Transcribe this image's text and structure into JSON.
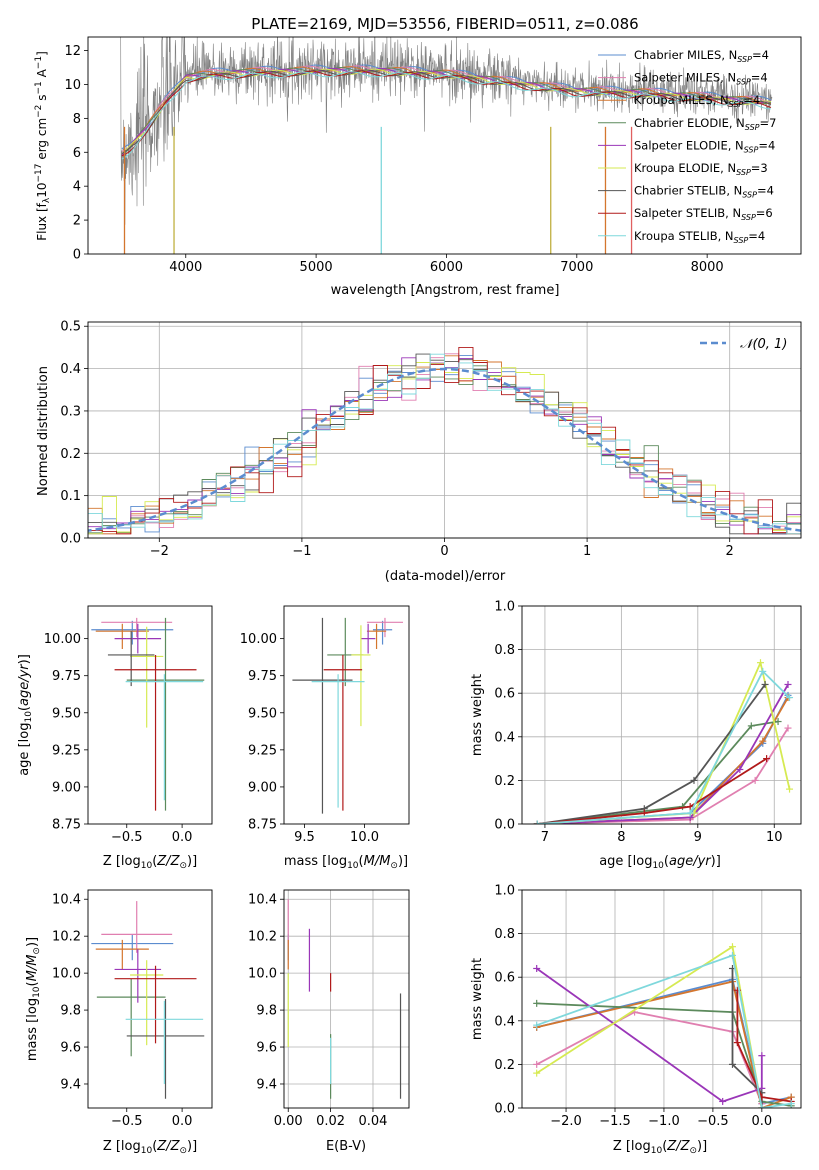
{
  "title": "PLATE=2169, MJD=53556, FIBERID=0511, z=0.086",
  "series": [
    {
      "name": "Chabrier MILES, N_SSP=4",
      "color": "#5b8ccf"
    },
    {
      "name": "Salpeter MILES, N_SSP=4",
      "color": "#e07fb0"
    },
    {
      "name": "Kroupa MILES, N_SSP=4",
      "color": "#d4762e"
    },
    {
      "name": "Chabrier ELODIE, N_SSP=7",
      "color": "#5c8a5c"
    },
    {
      "name": "Salpeter ELODIE, N_SSP=4",
      "color": "#9a36b8"
    },
    {
      "name": "Kroupa ELODIE, N_SSP=3",
      "color": "#d6ea52"
    },
    {
      "name": "Chabrier STELIB, N_SSP=4",
      "color": "#555555"
    },
    {
      "name": "Salpeter STELIB, N_SSP=6",
      "color": "#b11a1a"
    },
    {
      "name": "Kroupa STELIB, N_SSP=4",
      "color": "#7fd8dc"
    }
  ],
  "chart_data": [
    {
      "id": "spectrum",
      "type": "line",
      "title": "PLATE=2169, MJD=53556, FIBERID=0511, z=0.086",
      "xlabel": "wavelength [Angstrom, rest frame]",
      "ylabel": "Flux [f_λ 10^-17 erg cm^-2 s^-1 A^-1]",
      "xlim": [
        3250,
        8720
      ],
      "ylim": [
        0,
        12.8
      ],
      "xticks": [
        4000,
        5000,
        6000,
        7000,
        8000
      ],
      "yticks": [
        0,
        2,
        4,
        6,
        8,
        10,
        12
      ],
      "data_profile": {
        "x": [
          3500,
          3560,
          3700,
          3850,
          4000,
          4200,
          4500,
          5000,
          5500,
          6000,
          6500,
          7000,
          7500,
          8000,
          8500
        ],
        "model_flux": [
          6.0,
          6.4,
          7.6,
          9.2,
          10.6,
          10.8,
          10.9,
          11.0,
          11.0,
          10.8,
          10.3,
          9.8,
          9.7,
          9.4,
          9.1
        ]
      },
      "grid": false,
      "legend": "right"
    },
    {
      "id": "residuals",
      "type": "line",
      "xlabel": "(data-model)/error",
      "ylabel": "Normed distribution",
      "xlim": [
        -2.5,
        2.5
      ],
      "ylim": [
        0,
        0.51
      ],
      "xticks": [
        -2,
        -1,
        0,
        1,
        2
      ],
      "yticks": [
        0.0,
        0.1,
        0.2,
        0.3,
        0.4,
        0.5
      ],
      "reference_curve": "N(0,1)",
      "grid": true,
      "legend": "top-right"
    },
    {
      "id": "age_vs_Z",
      "type": "scatter",
      "xlabel": "Z [log10(Z/Z⊙)]",
      "ylabel": "age [log10(age/yr)]",
      "xlim": [
        -0.85,
        0.27
      ],
      "ylim": [
        8.75,
        10.22
      ],
      "xticks": [
        -0.5,
        0.0
      ],
      "yticks": [
        8.75,
        9.0,
        9.25,
        9.5,
        9.75,
        10.0
      ],
      "points": [
        {
          "x": -0.45,
          "y": 10.06,
          "xerr": 0.37,
          "ylo": 0.1,
          "yhi": 0.06
        },
        {
          "x": -0.41,
          "y": 10.11,
          "xerr": 0.32,
          "ylo": 0.1,
          "yhi": 0.03
        },
        {
          "x": -0.54,
          "y": 10.05,
          "xerr": 0.24,
          "ylo": 0.12,
          "yhi": 0.05
        },
        {
          "x": -0.15,
          "y": 9.72,
          "xerr": 0.35,
          "ylo": 0.88,
          "yhi": 0.42
        },
        {
          "x": -0.4,
          "y": 10.0,
          "xerr": 0.21,
          "ylo": 0.1,
          "yhi": 0.1
        },
        {
          "x": -0.32,
          "y": 9.88,
          "xerr": 0.15,
          "ylo": 0.48,
          "yhi": 0.2
        },
        {
          "x": -0.46,
          "y": 9.89,
          "xerr": 0.21,
          "ylo": 0.21,
          "yhi": 0.16
        },
        {
          "x": -0.24,
          "y": 9.79,
          "xerr": 0.37,
          "ylo": 0.95,
          "yhi": 0.1
        },
        {
          "x": -0.16,
          "y": 9.71,
          "xerr": 0.35,
          "ylo": 0.8,
          "yhi": 0.05
        }
      ]
    },
    {
      "id": "age_vs_mass",
      "type": "scatter",
      "xlabel": "mass [log10(M/M⊙)]",
      "ylabel": "",
      "xlim": [
        9.33,
        10.37
      ],
      "ylim": [
        8.75,
        10.22
      ],
      "xticks": [
        9.5,
        10.0
      ],
      "yticks": [
        8.75,
        9.0,
        9.25,
        9.5,
        9.75,
        10.0
      ],
      "points": [
        {
          "x": 10.15,
          "y": 10.06,
          "xerr": 0.08,
          "ylo": 0.1,
          "yhi": 0.06
        },
        {
          "x": 10.17,
          "y": 10.11,
          "xerr": 0.15,
          "ylo": 0.1,
          "yhi": 0.03
        },
        {
          "x": 10.1,
          "y": 10.05,
          "xerr": 0.08,
          "ylo": 0.12,
          "yhi": 0.05
        },
        {
          "x": 9.84,
          "y": 9.89,
          "xerr": 0.15,
          "ylo": 0.21,
          "yhi": 0.25
        },
        {
          "x": 10.03,
          "y": 10.0,
          "xerr": 0.06,
          "ylo": 0.1,
          "yhi": 0.1
        },
        {
          "x": 9.97,
          "y": 9.89,
          "xerr": 0.08,
          "ylo": 0.48,
          "yhi": 0.2
        },
        {
          "x": 9.65,
          "y": 9.72,
          "xerr": 0.25,
          "ylo": 0.9,
          "yhi": 0.42
        },
        {
          "x": 9.82,
          "y": 9.79,
          "xerr": 0.16,
          "ylo": 0.95,
          "yhi": 0.1
        },
        {
          "x": 9.78,
          "y": 9.71,
          "xerr": 0.22,
          "ylo": 0.85,
          "yhi": 0.05
        }
      ]
    },
    {
      "id": "mass_weight_vs_age",
      "type": "line",
      "xlabel": "age [log10(age/yr)]",
      "ylabel": "mass weight",
      "xlim": [
        6.7,
        10.35
      ],
      "ylim": [
        0,
        1
      ],
      "xticks": [
        7,
        8,
        9,
        10
      ],
      "yticks": [
        0.0,
        0.2,
        0.4,
        0.6,
        0.8,
        1.0
      ],
      "grid": true,
      "lines": [
        {
          "x": [
            6.9,
            8.9,
            9.85,
            10.18
          ],
          "y": [
            0.0,
            0.05,
            0.37,
            0.59
          ]
        },
        {
          "x": [
            6.9,
            8.9,
            9.75,
            10.18
          ],
          "y": [
            0.0,
            0.02,
            0.2,
            0.44
          ]
        },
        {
          "x": [
            6.9,
            8.9,
            9.85,
            10.18
          ],
          "y": [
            0.0,
            0.03,
            0.38,
            0.58
          ]
        },
        {
          "x": [
            6.9,
            8.8,
            9.7,
            10.05
          ],
          "y": [
            0.0,
            0.08,
            0.45,
            0.47
          ]
        },
        {
          "x": [
            6.9,
            8.9,
            9.55,
            10.18
          ],
          "y": [
            0.0,
            0.03,
            0.25,
            0.64
          ]
        },
        {
          "x": [
            6.9,
            8.95,
            9.82,
            10.2
          ],
          "y": [
            0.0,
            0.05,
            0.74,
            0.16
          ]
        },
        {
          "x": [
            6.9,
            8.3,
            8.95,
            9.88
          ],
          "y": [
            0.0,
            0.07,
            0.2,
            0.64
          ]
        },
        {
          "x": [
            6.9,
            8.3,
            8.9,
            9.9
          ],
          "y": [
            0.0,
            0.05,
            0.08,
            0.3
          ]
        },
        {
          "x": [
            6.9,
            8.9,
            9.85,
            10.2
          ],
          "y": [
            0.0,
            0.05,
            0.7,
            0.58
          ]
        }
      ]
    },
    {
      "id": "mass_vs_Z",
      "type": "scatter",
      "xlabel": "Z [log10(Z/Z⊙)]",
      "ylabel": "mass [log10(M/M⊙)]",
      "xlim": [
        -0.85,
        0.27
      ],
      "ylim": [
        9.27,
        10.45
      ],
      "xticks": [
        -0.5,
        0.0
      ],
      "yticks": [
        9.4,
        9.6,
        9.8,
        10.0,
        10.2,
        10.4
      ],
      "points": [
        {
          "x": -0.45,
          "y": 10.16,
          "xerr": 0.37,
          "ylo": 0.09,
          "yhi": 0.05
        },
        {
          "x": -0.41,
          "y": 10.21,
          "xerr": 0.32,
          "ylo": 0.1,
          "yhi": 0.18
        },
        {
          "x": -0.54,
          "y": 10.13,
          "xerr": 0.24,
          "ylo": 0.11,
          "yhi": 0.05
        },
        {
          "x": -0.46,
          "y": 9.87,
          "xerr": 0.31,
          "ylo": 0.32,
          "yhi": 0.1
        },
        {
          "x": -0.4,
          "y": 10.02,
          "xerr": 0.21,
          "ylo": 0.18,
          "yhi": 0.11
        },
        {
          "x": -0.32,
          "y": 9.99,
          "xerr": 0.15,
          "ylo": 0.38,
          "yhi": 0.08
        },
        {
          "x": -0.15,
          "y": 9.66,
          "xerr": 0.35,
          "ylo": 0.34,
          "yhi": 0.2
        },
        {
          "x": -0.24,
          "y": 9.97,
          "xerr": 0.37,
          "ylo": 0.35,
          "yhi": 0.07
        },
        {
          "x": -0.16,
          "y": 9.75,
          "xerr": 0.35,
          "ylo": 0.35,
          "yhi": 0.1
        }
      ]
    },
    {
      "id": "mass_vs_ebv",
      "type": "scatter",
      "xlabel": "E(B-V)",
      "ylabel": "",
      "xlim": [
        -0.002,
        0.057
      ],
      "ylim": [
        9.27,
        10.45
      ],
      "xticks": [
        0.0,
        0.02,
        0.04
      ],
      "yticks": [
        9.4,
        9.6,
        9.8,
        10.0,
        10.2,
        10.4
      ],
      "points": [
        {
          "x": 0.0,
          "y": 10.16,
          "ylo": 0.09,
          "yhi": 0.05
        },
        {
          "x": 0.0,
          "y": 10.3,
          "ylo": 0.15,
          "yhi": 0.1
        },
        {
          "x": 0.0,
          "y": 10.13,
          "ylo": 0.11,
          "yhi": 0.05
        },
        {
          "x": 0.02,
          "y": 9.57,
          "ylo": 0.25,
          "yhi": 0.1
        },
        {
          "x": 0.01,
          "y": 10.07,
          "ylo": 0.17,
          "yhi": 0.17
        },
        {
          "x": 0.0,
          "y": 9.8,
          "ylo": 0.2,
          "yhi": 0.2
        },
        {
          "x": 0.053,
          "y": 9.6,
          "ylo": 0.28,
          "yhi": 0.29
        },
        {
          "x": 0.02,
          "y": 9.95,
          "ylo": 0.05,
          "yhi": 0.05
        },
        {
          "x": 0.02,
          "y": 9.55,
          "ylo": 0.15,
          "yhi": 0.1
        }
      ]
    },
    {
      "id": "mass_weight_vs_Z",
      "type": "line",
      "xlabel": "Z [log10(Z/Z⊙)]",
      "ylabel": "mass weight",
      "xlim": [
        -2.45,
        0.4
      ],
      "ylim": [
        0,
        1
      ],
      "xticks": [
        -2.0,
        -1.5,
        -1.0,
        -0.5,
        0.0
      ],
      "yticks": [
        0.0,
        0.2,
        0.4,
        0.6,
        0.8,
        1.0
      ],
      "grid": true,
      "lines": [
        {
          "x": [
            -2.3,
            -0.3,
            0.0,
            0.3
          ],
          "y": [
            0.37,
            0.59,
            0.02,
            0.05
          ]
        },
        {
          "x": [
            -2.3,
            -1.3,
            -0.3,
            0.0
          ],
          "y": [
            0.2,
            0.44,
            0.35,
            0.02
          ]
        },
        {
          "x": [
            -2.3,
            -0.3,
            0.0,
            0.3
          ],
          "y": [
            0.37,
            0.58,
            0.0,
            0.05
          ]
        },
        {
          "x": [
            -2.3,
            -0.3,
            0.0,
            0.3
          ],
          "y": [
            0.48,
            0.44,
            0.03,
            0.01
          ]
        },
        {
          "x": [
            -2.3,
            -0.4,
            0.0,
            0.0
          ],
          "y": [
            0.64,
            0.03,
            0.09,
            0.24
          ]
        },
        {
          "x": [
            -2.3,
            -0.3,
            0.0
          ],
          "y": [
            0.16,
            0.74,
            0.0
          ]
        },
        {
          "x": [
            -0.3,
            -0.3,
            0.0,
            0.0
          ],
          "y": [
            0.64,
            0.2,
            0.07,
            0.0
          ]
        },
        {
          "x": [
            -0.25,
            -0.25,
            0.0,
            0.3
          ],
          "y": [
            0.54,
            0.3,
            0.05,
            0.03
          ]
        },
        {
          "x": [
            -2.3,
            -0.3,
            0.0,
            0.3
          ],
          "y": [
            0.38,
            0.7,
            0.0,
            0.02
          ]
        }
      ]
    }
  ]
}
